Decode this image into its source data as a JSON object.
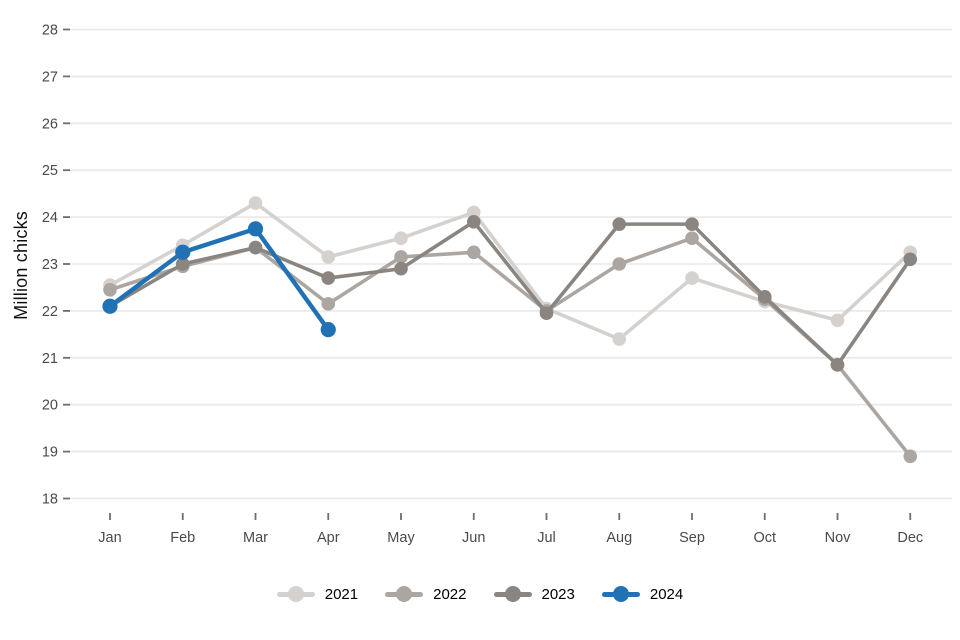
{
  "chart_data": {
    "type": "line",
    "title": "",
    "xlabel": "",
    "ylabel": "Million chicks",
    "categories": [
      "Jan",
      "Feb",
      "Mar",
      "Apr",
      "May",
      "Jun",
      "Jul",
      "Aug",
      "Sep",
      "Oct",
      "Nov",
      "Dec"
    ],
    "series": [
      {
        "name": "2021",
        "color": "#d5d1ce",
        "values": [
          22.55,
          23.4,
          24.3,
          23.15,
          23.55,
          24.1,
          22.05,
          21.4,
          22.7,
          22.2,
          21.8,
          23.25
        ]
      },
      {
        "name": "2022",
        "color": "#aca6a2",
        "values": [
          22.45,
          22.95,
          23.35,
          22.15,
          23.15,
          23.25,
          22.0,
          23.0,
          23.55,
          22.25,
          20.85,
          18.9
        ]
      },
      {
        "name": "2023",
        "color": "#8a8580",
        "values": [
          22.1,
          23.0,
          23.35,
          22.7,
          22.9,
          23.9,
          21.95,
          23.85,
          23.85,
          22.3,
          20.85,
          23.1
        ]
      },
      {
        "name": "2024",
        "color": "#2171b5",
        "values": [
          22.1,
          23.25,
          23.75,
          21.6,
          null,
          null,
          null,
          null,
          null,
          null,
          null,
          null
        ]
      }
    ],
    "ylim": [
      18,
      28
    ],
    "y_ticks": [
      18,
      19,
      20,
      21,
      22,
      23,
      24,
      25,
      26,
      27,
      28
    ],
    "grid": "horizontal",
    "legend_position": "bottom",
    "style": {
      "grid_color": "#e8e8e8",
      "tick_mark_color": "#6e6e6e",
      "axis_text_color": "#4a4a4a",
      "plot_background": "#ffffff"
    }
  }
}
